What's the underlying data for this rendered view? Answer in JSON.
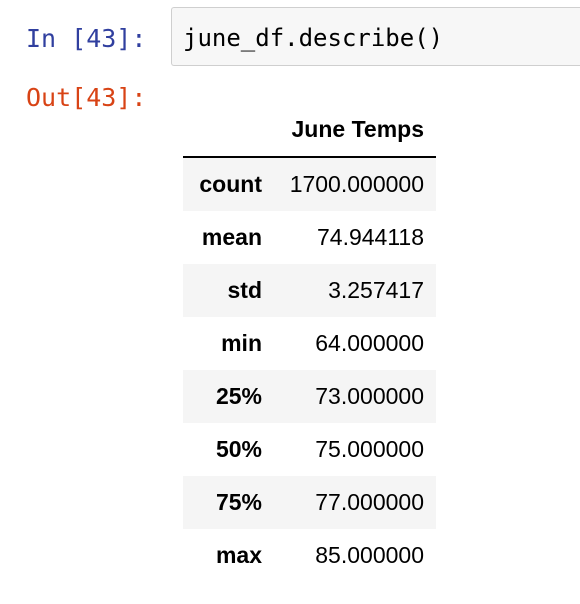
{
  "cell": {
    "in_prompt": "In [43]:",
    "code": "june_df.describe()",
    "out_prompt": "Out[43]:"
  },
  "table": {
    "column_header": "June Temps",
    "rows": [
      {
        "label": "count",
        "value": "1700.000000"
      },
      {
        "label": "mean",
        "value": "74.944118"
      },
      {
        "label": "std",
        "value": "3.257417"
      },
      {
        "label": "min",
        "value": "64.000000"
      },
      {
        "label": "25%",
        "value": "73.000000"
      },
      {
        "label": "50%",
        "value": "75.000000"
      },
      {
        "label": "75%",
        "value": "77.000000"
      },
      {
        "label": "max",
        "value": "85.000000"
      }
    ]
  }
}
